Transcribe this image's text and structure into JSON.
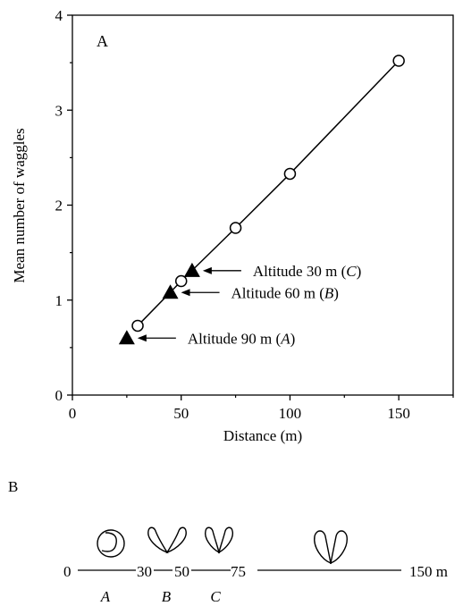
{
  "chart_data": {
    "type": "scatter",
    "panel_label": "A",
    "xlabel": "Distance (m)",
    "ylabel": "Mean number of waggles",
    "xlim": [
      0,
      175
    ],
    "ylim": [
      0,
      4
    ],
    "xticks": [
      0,
      50,
      100,
      150
    ],
    "yticks": [
      0,
      1,
      2,
      3,
      4
    ],
    "series": [
      {
        "marker": "open-circle",
        "line": true,
        "points": [
          {
            "x": 30,
            "y": 0.73
          },
          {
            "x": 50,
            "y": 1.2
          },
          {
            "x": 75,
            "y": 1.76
          },
          {
            "x": 100,
            "y": 2.33
          },
          {
            "x": 150,
            "y": 3.52
          }
        ]
      },
      {
        "marker": "filled-triangle",
        "line": false,
        "points": [
          {
            "x": 25,
            "y": 0.6
          },
          {
            "x": 45,
            "y": 1.08
          },
          {
            "x": 55,
            "y": 1.31
          }
        ]
      }
    ],
    "annotations": [
      {
        "text": "Altitude 30 m (",
        "italic": "C",
        "close": ")",
        "x": 55,
        "y": 1.31
      },
      {
        "text": "Altitude 60 m (",
        "italic": "B",
        "close": ")",
        "x": 45,
        "y": 1.08
      },
      {
        "text": "Altitude 90 m (",
        "italic": "A",
        "close": ")",
        "x": 25,
        "y": 0.6
      }
    ]
  },
  "panel_b": {
    "label": "B",
    "start_label": "0",
    "tick_labels": [
      "30",
      "50",
      "75"
    ],
    "end_label": "150 m",
    "segment_labels": [
      "A",
      "B",
      "C"
    ]
  }
}
